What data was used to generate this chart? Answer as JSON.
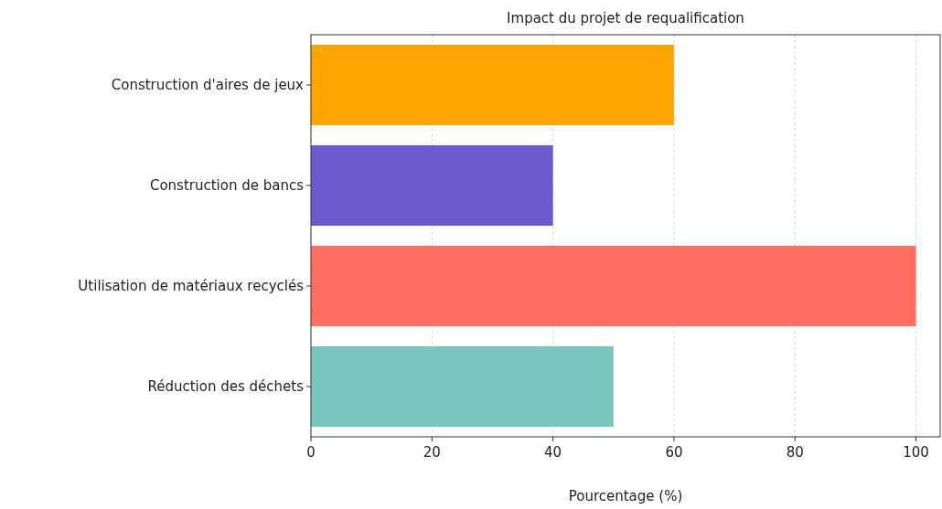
{
  "chart_data": {
    "type": "bar",
    "orientation": "horizontal",
    "title": "Impact du projet de requalification",
    "xlabel": "Pourcentage (%)",
    "categories": [
      "Construction d'aires de jeux",
      "Construction de bancs",
      "Utilisation de matériaux recyclés",
      "Réduction des déchets"
    ],
    "values": [
      60,
      40,
      100,
      50
    ],
    "colors": [
      "#ffa500",
      "#6a5acd",
      "#ff6f61",
      "#7ac5bd"
    ],
    "xlim": [
      0,
      104
    ],
    "xticks": [
      0,
      20,
      40,
      60,
      80,
      100
    ],
    "grid": "x"
  }
}
